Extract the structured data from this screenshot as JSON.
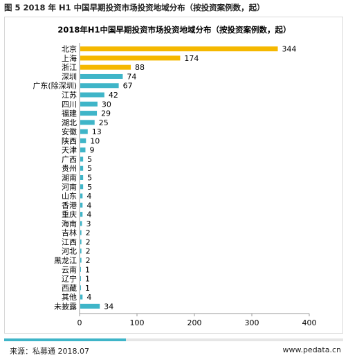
{
  "figure_caption": "图 5 2018 年 H1 中国早期投资市场投资地域分布（按投资案例数，起）",
  "source": "来源：私募通 2018.07",
  "site": "www.pedata.cn",
  "colors": {
    "top_bars": "#f5b800",
    "other_bars": "#3fb5c8",
    "axis": "#999999",
    "text": "#000000"
  },
  "chart_data": {
    "type": "bar",
    "orientation": "horizontal",
    "title": "2018年H1中国早期投资市场投资地域分布（按投资案例数，起）",
    "xlabel": "",
    "ylabel": "",
    "xlim": [
      0,
      400
    ],
    "xticks": [
      0,
      100,
      200,
      300,
      400
    ],
    "grid": false,
    "legend": "none",
    "categories": [
      "北京",
      "上海",
      "浙江",
      "深圳",
      "广东(除深圳)",
      "江苏",
      "四川",
      "福建",
      "湖北",
      "安徽",
      "陕西",
      "天津",
      "广西",
      "贵州",
      "湖南",
      "河南",
      "山东",
      "香港",
      "重庆",
      "海南",
      "吉林",
      "江西",
      "河北",
      "黑龙江",
      "云南",
      "辽宁",
      "西藏",
      "其他",
      "未披露"
    ],
    "values": [
      344,
      174,
      88,
      74,
      67,
      42,
      30,
      29,
      25,
      13,
      10,
      9,
      5,
      5,
      5,
      5,
      4,
      4,
      4,
      3,
      2,
      2,
      2,
      2,
      1,
      1,
      1,
      4,
      34
    ],
    "highlight_count": 3
  }
}
